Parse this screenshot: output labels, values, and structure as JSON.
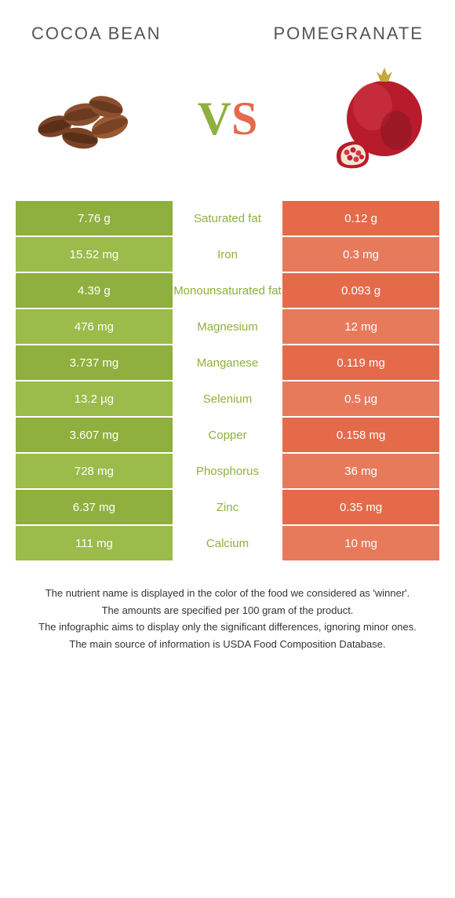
{
  "colors": {
    "left": "#8fb03e",
    "left_alt": "#9bbb4a",
    "right": "#e46a4a",
    "right_alt": "#e87a5c",
    "vs_v": "#8fb03e",
    "vs_s": "#e46a4a",
    "bean_dark": "#6b3a1e",
    "bean_light": "#9a5a2f",
    "pom_red": "#b81c2c",
    "pom_dark": "#8a1522",
    "pom_crown": "#c9a83a",
    "pom_seed": "#d13a4a"
  },
  "header": {
    "left": "COCOA BEAN",
    "right": "POMEGRANATE"
  },
  "vs": {
    "v": "V",
    "s": "S"
  },
  "rows": [
    {
      "left": "7.76 g",
      "label": "Saturated fat",
      "right": "0.12 g",
      "winner": "left"
    },
    {
      "left": "15.52 mg",
      "label": "Iron",
      "right": "0.3 mg",
      "winner": "left"
    },
    {
      "left": "4.39 g",
      "label": "Monounsaturated fat",
      "right": "0.093 g",
      "winner": "left"
    },
    {
      "left": "476 mg",
      "label": "Magnesium",
      "right": "12 mg",
      "winner": "left"
    },
    {
      "left": "3.737 mg",
      "label": "Manganese",
      "right": "0.119 mg",
      "winner": "left"
    },
    {
      "left": "13.2 µg",
      "label": "Selenium",
      "right": "0.5 µg",
      "winner": "left"
    },
    {
      "left": "3.607 mg",
      "label": "Copper",
      "right": "0.158 mg",
      "winner": "left"
    },
    {
      "left": "728 mg",
      "label": "Phosphorus",
      "right": "36 mg",
      "winner": "left"
    },
    {
      "left": "6.37 mg",
      "label": "Zinc",
      "right": "0.35 mg",
      "winner": "left"
    },
    {
      "left": "111 mg",
      "label": "Calcium",
      "right": "10 mg",
      "winner": "left"
    }
  ],
  "footer": [
    "The nutrient name is displayed in the color of the food we considered as 'winner'.",
    "The amounts are specified per 100 gram of the product.",
    "The infographic aims to display only the significant differences, ignoring minor ones.",
    "The main source of information is USDA Food Composition Database."
  ]
}
